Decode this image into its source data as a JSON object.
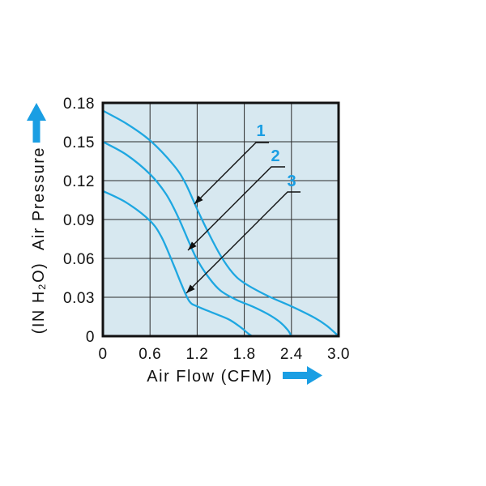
{
  "chart_data": {
    "type": "line",
    "xlabel": "Air Flow (CFM)",
    "ylabel": "Air Pressure",
    "yunit": "(IN H₂O)",
    "xlim": [
      0,
      3.0
    ],
    "ylim": [
      0,
      0.18
    ],
    "xtick_labels": [
      "0",
      "0.6",
      "1.2",
      "1.8",
      "2.4",
      "3.0"
    ],
    "ytick_labels": [
      "0",
      "0.03",
      "0.06",
      "0.09",
      "0.12",
      "0.15",
      "0.18"
    ],
    "grid": true,
    "legend": "top-right",
    "series": [
      {
        "name": "1",
        "x": [
          0,
          0.3,
          0.6,
          0.9,
          1.05,
          1.2,
          1.35,
          1.5,
          1.65,
          1.8,
          2.1,
          2.4,
          2.7,
          2.85,
          3.0
        ],
        "y": [
          0.174,
          0.164,
          0.151,
          0.132,
          0.118,
          0.098,
          0.079,
          0.062,
          0.049,
          0.041,
          0.031,
          0.023,
          0.014,
          0.008,
          0.0
        ]
      },
      {
        "name": "2",
        "x": [
          0,
          0.3,
          0.6,
          0.8,
          0.95,
          1.1,
          1.2,
          1.35,
          1.5,
          1.7,
          1.9,
          2.1,
          2.25,
          2.35,
          2.4
        ],
        "y": [
          0.15,
          0.14,
          0.125,
          0.11,
          0.093,
          0.072,
          0.059,
          0.045,
          0.035,
          0.028,
          0.023,
          0.017,
          0.011,
          0.005,
          0.0
        ]
      },
      {
        "name": "3",
        "x": [
          0,
          0.3,
          0.6,
          0.75,
          0.9,
          1.0,
          1.1,
          1.2,
          1.4,
          1.6,
          1.75,
          1.85,
          1.9
        ],
        "y": [
          0.112,
          0.103,
          0.089,
          0.076,
          0.055,
          0.04,
          0.027,
          0.023,
          0.018,
          0.013,
          0.007,
          0.002,
          0.0
        ]
      }
    ]
  },
  "colors": {
    "curve": "#1ea7e1",
    "callout_label": "#1a9ee3",
    "axis_arrow": "#1a9ee3",
    "plot_background": "#d7e8f0",
    "frame": "#111111",
    "grid": "#2a2a2a",
    "leader": "#111111"
  },
  "icons": {
    "y_axis": "up-arrow-icon",
    "x_axis": "right-arrow-icon"
  }
}
